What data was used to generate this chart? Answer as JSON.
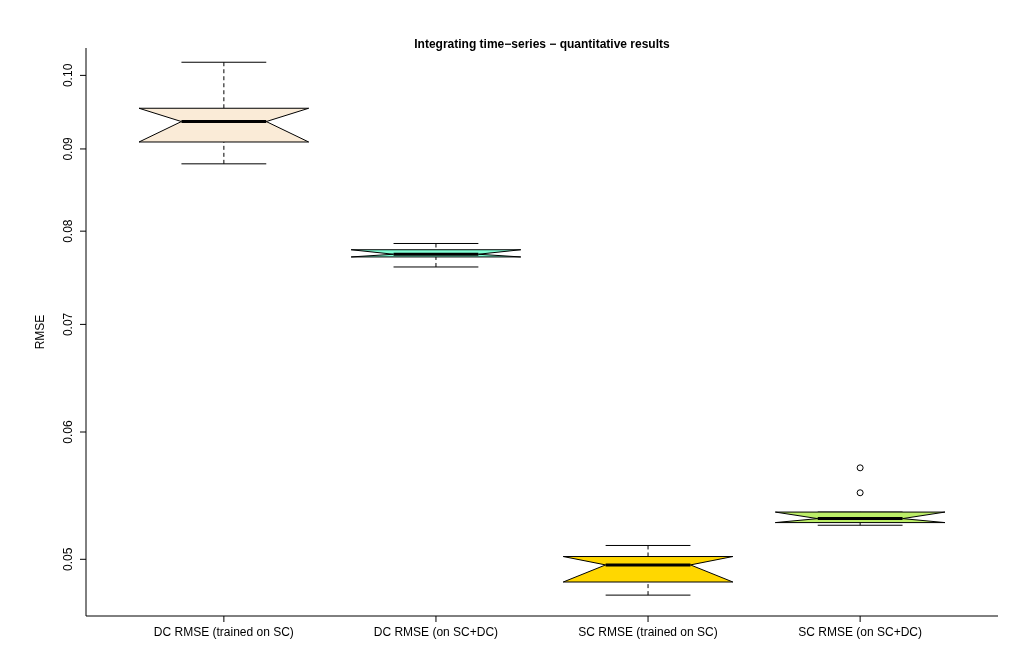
{
  "chart_data": {
    "type": "box",
    "title": "Integrating time−series − quantitative results",
    "ylabel": "RMSE",
    "categories": [
      "DC RMSE (trained on SC)",
      "DC RMSE (on SC+DC)",
      "SC RMSE (trained on SC)",
      "SC RMSE (on SC+DC)"
    ],
    "colors": [
      "#faebd7",
      "#7fffd4",
      "#ffd700",
      "#bcee68"
    ],
    "boxes": [
      {
        "low": 0.0881,
        "q1": 0.0909,
        "median": 0.0936,
        "q3": 0.0954,
        "high": 0.1019
      },
      {
        "low": 0.076,
        "q1": 0.0771,
        "median": 0.0774,
        "q3": 0.0779,
        "high": 0.0786
      },
      {
        "low": 0.0475,
        "q1": 0.0484,
        "median": 0.0496,
        "q3": 0.0502,
        "high": 0.051
      },
      {
        "low": 0.0525,
        "q1": 0.0527,
        "median": 0.053,
        "q3": 0.0535,
        "high": 0.0535,
        "outliers": [
          0.055,
          0.057
        ]
      }
    ],
    "log": true,
    "ylim": [
      0.0461,
      0.104
    ],
    "yticks": [
      0.05,
      0.06,
      0.07,
      0.08,
      0.09,
      {
        "value": 0.1,
        "label": "0.10"
      }
    ],
    "grid": false
  }
}
